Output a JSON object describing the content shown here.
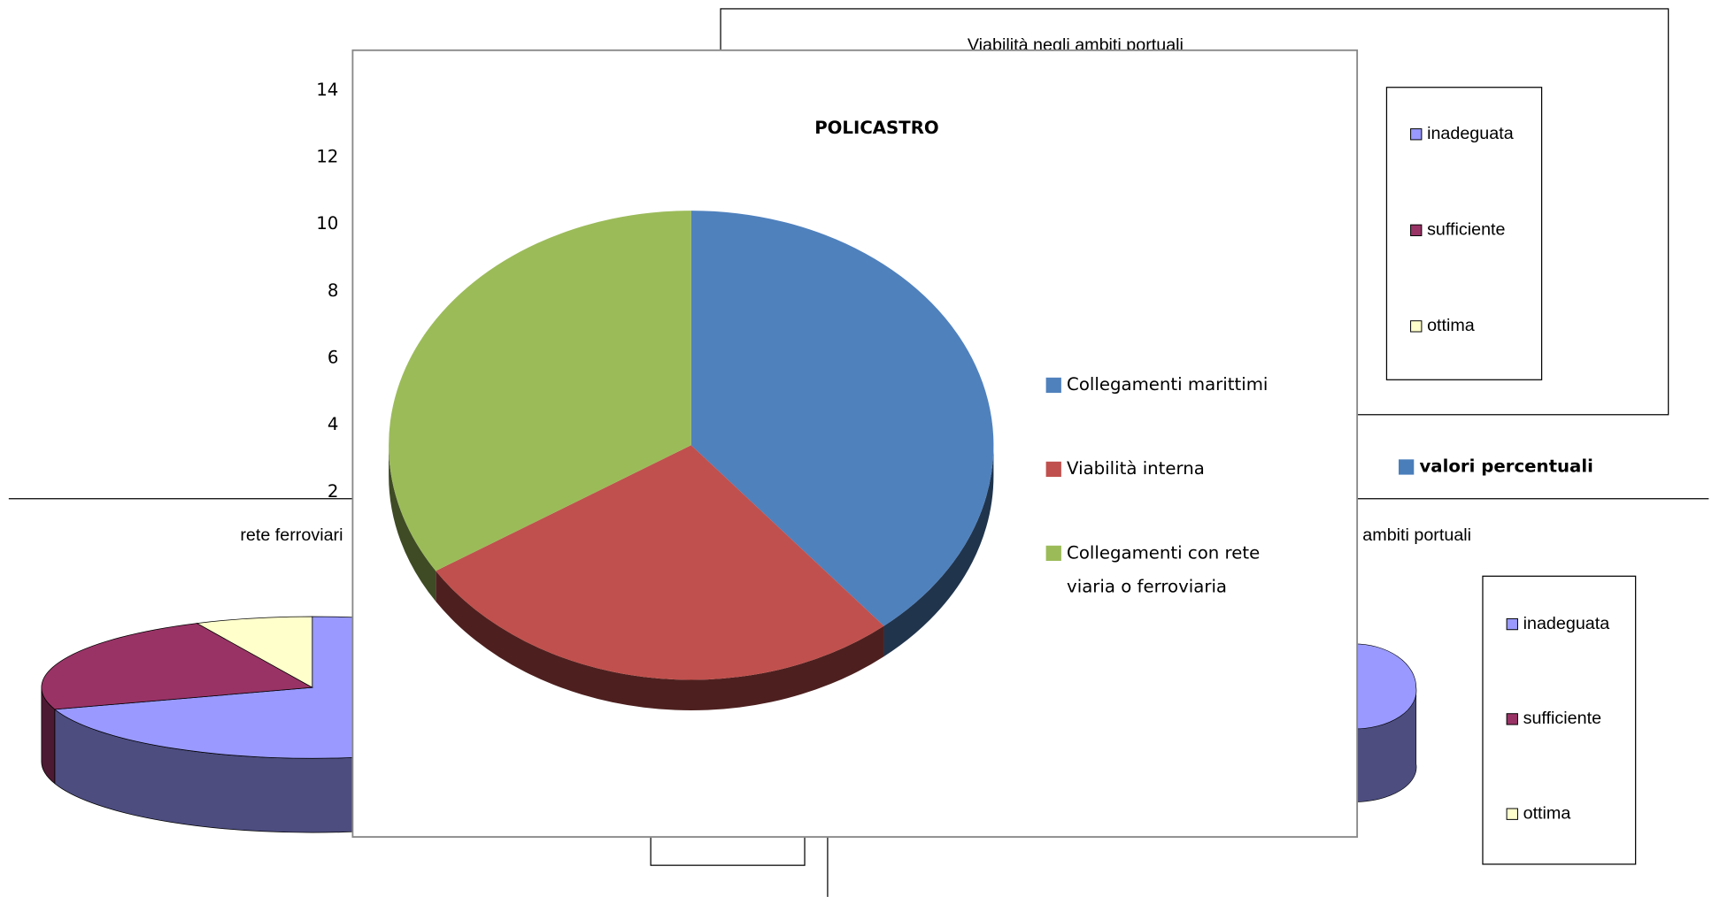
{
  "chart_data": [
    {
      "type": "bar",
      "yticks": [
        2,
        4,
        6,
        8,
        10,
        12,
        14
      ],
      "ylim": [
        2,
        14
      ],
      "series": [
        {
          "name": "valori percentuali",
          "color": "#4a7ebb"
        }
      ]
    },
    {
      "type": "pie",
      "title": "Viabilità negli ambiti portuali",
      "categories": [
        "inadeguata",
        "sufficiente",
        "ottima"
      ],
      "colors": [
        "#9999ff",
        "#993366",
        "#ffffcc"
      ]
    },
    {
      "type": "pie",
      "title": "rete ferroviari",
      "categories": [
        "inadeguata",
        "sufficiente",
        "ottima"
      ],
      "values": [
        70,
        23,
        7
      ],
      "colors": [
        "#9999ff",
        "#993366",
        "#ffffcc"
      ]
    },
    {
      "type": "pie",
      "title": "i ambiti portuali",
      "categories": [
        "inadeguata",
        "sufficiente",
        "ottima"
      ],
      "colors": [
        "#9999ff",
        "#993366",
        "#ffffcc"
      ]
    },
    {
      "type": "pie",
      "title": "POLICASTRO",
      "categories": [
        "Collegamenti marittimi",
        "Viabilità interna",
        "Collegamenti con rete viaria o ferroviaria"
      ],
      "values": [
        39,
        27,
        34
      ],
      "colors": [
        "#4f81bd",
        "#c0504d",
        "#9bbb59"
      ]
    }
  ]
}
